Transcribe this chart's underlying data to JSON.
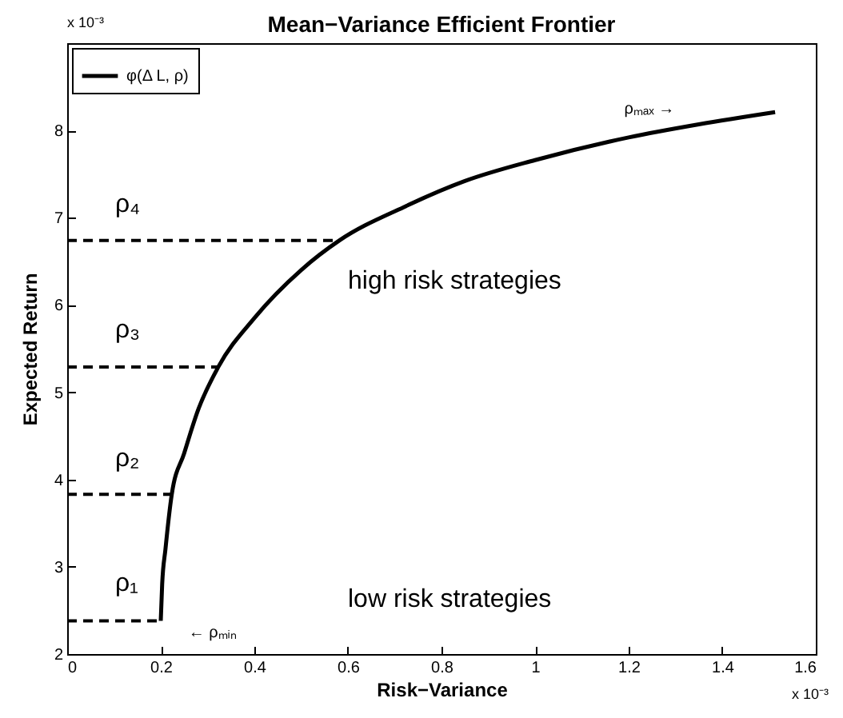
{
  "chart_data": {
    "type": "line",
    "title": "Mean−Variance Efficient Frontier",
    "xlabel": "Risk−Variance",
    "ylabel": "Expected Return",
    "xlim": [
      0,
      1.6
    ],
    "xticks": [
      0,
      0.2,
      0.4,
      0.6,
      0.8,
      1,
      1.2,
      1.4,
      1.6
    ],
    "ylim": [
      2,
      9
    ],
    "yticks": [
      2,
      3,
      4,
      5,
      6,
      7,
      8
    ],
    "legend": "top left",
    "grid": false,
    "series": [
      {
        "name": "φ(Δ L, ρ)",
        "color": "#000000",
        "line_style": "solid",
        "x": [
          0.2,
          0.203,
          0.21,
          0.2235,
          0.25,
          0.28,
          0.323,
          0.4,
          0.5,
          0.582,
          0.719,
          0.85,
          1.0,
          1.2,
          1.35,
          1.513
        ],
        "values": [
          2.38,
          2.8,
          3.2,
          3.83,
          4.3,
          4.8,
          5.29,
          5.85,
          6.4,
          6.74,
          7.12,
          7.42,
          7.66,
          7.92,
          8.07,
          8.21
        ]
      },
      {
        "color": "#000000",
        "line_style": "dashed",
        "x": [
          0,
          0.2
        ],
        "values": [
          2.38,
          2.38
        ]
      },
      {
        "color": "#000000",
        "line_style": "dashed",
        "x": [
          0,
          0.2235
        ],
        "values": [
          3.83,
          3.83
        ]
      },
      {
        "color": "#000000",
        "line_style": "dashed",
        "x": [
          0,
          0.323
        ],
        "values": [
          5.29,
          5.29
        ]
      },
      {
        "color": "#000000",
        "line_style": "dashed",
        "x": [
          0,
          0.582
        ],
        "values": [
          6.74,
          6.74
        ]
      }
    ],
    "annotations": [
      "x 10⁻³",
      "x 10⁻³",
      "high risk strategies",
      "low risk strategies",
      "ρₘₐₓ →",
      "ρ₁",
      "ρ₂",
      "ρ₃",
      "ρ₄",
      "← ρₘᵢₙ"
    ]
  }
}
